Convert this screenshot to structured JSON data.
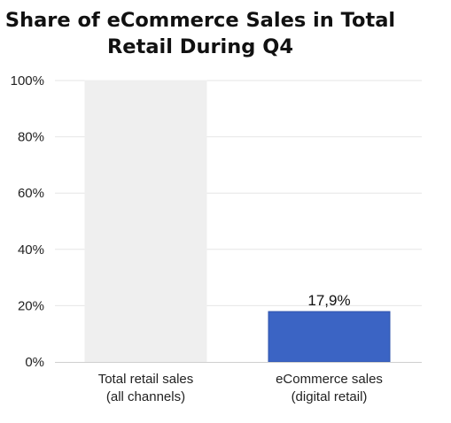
{
  "chart_data": {
    "type": "bar",
    "title_lines": [
      "Share of eCommerce Sales in Total",
      "Retail During Q4"
    ],
    "categories": [
      [
        "Total retail sales",
        "(all channels)"
      ],
      [
        "eCommerce sales",
        "(digital retail)"
      ]
    ],
    "values": [
      100,
      17.9
    ],
    "data_labels": [
      "",
      "17,9%"
    ],
    "bar_colors": [
      "#efefef",
      "#3b64c4"
    ],
    "bar_outline_colors": [
      "#efefef",
      "#2f54ad"
    ],
    "ylim": [
      0,
      100
    ],
    "yticks": [
      0,
      20,
      40,
      60,
      80,
      100
    ],
    "ytick_labels": [
      "0%",
      "20%",
      "40%",
      "60%",
      "80%",
      "100%"
    ],
    "xlabel": "",
    "ylabel": "",
    "grid": true,
    "grid_color": "#e6e6e6",
    "legend": "none"
  }
}
